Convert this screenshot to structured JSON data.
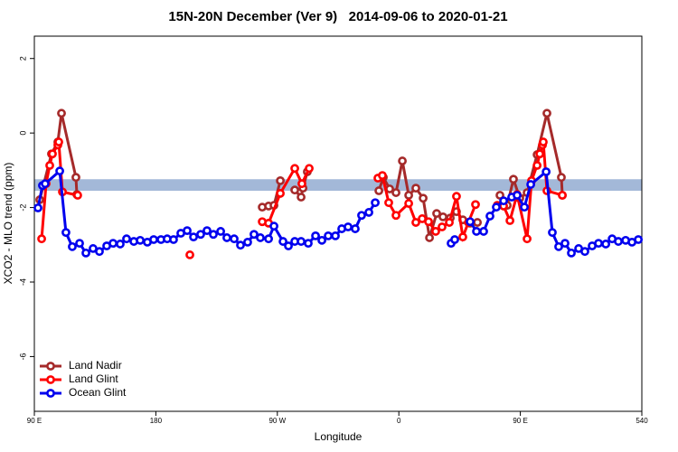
{
  "chart_data": {
    "type": "line",
    "title": "15N-20N December (Ver 9)   2014-09-06 to 2020-01-21",
    "x_label": "Longitude",
    "y_label": "XCO2 - MLO trend (ppm)",
    "xlim": [
      90,
      540
    ],
    "xticks": [
      {
        "value": 90,
        "label": "90 E"
      },
      180,
      {
        "value": 270,
        "label": "90 W"
      },
      {
        "value": 360,
        "label": "0"
      },
      {
        "value": 450,
        "label": "90 E"
      },
      540
    ],
    "ylim": [
      -7.47,
      2.6
    ],
    "yticks": [
      -6,
      -4,
      -2,
      0,
      2
    ],
    "band": [
      -1.55,
      -1.24
    ],
    "band_color": "#a3b8d8",
    "legend": "bottom-left",
    "series": [
      {
        "name": "Land Nadir",
        "color": "#a52a2a",
        "x": [
          94.0,
          96.7,
          102.7,
          107.4,
          110.1,
          120.8,
          121.5,
          null,
          258.8,
          263.5,
          267.5,
          272.2,
          null,
          282.9,
          287.6,
          289.0,
          292.2,
          null,
          345.2,
          348.5,
          353.2,
          357.9,
          362.6,
          367.3,
          372.6,
          378.0,
          382.7,
          388.0,
          392.7,
          398.1,
          402.7,
          407.4,
          412.8,
          418.2,
          null,
          434.9,
          440.3,
          444.9,
          449.6,
          455.0,
          462.4,
          469.7,
          480.4,
          481.1
        ],
        "values": [
          -1.79,
          -1.41,
          -0.56,
          -0.24,
          0.53,
          -1.19,
          -1.65,
          null,
          -1.99,
          -1.96,
          -1.94,
          -1.28,
          null,
          -1.53,
          -1.72,
          -1.48,
          -1.04,
          null,
          -1.55,
          -1.19,
          -1.5,
          -1.6,
          -0.75,
          -1.67,
          -1.48,
          -1.75,
          -2.81,
          -2.16,
          -2.25,
          -2.28,
          -2.11,
          -2.33,
          -2.42,
          -2.4,
          null,
          -1.67,
          -1.94,
          -1.24,
          -1.75,
          -1.6,
          -0.58,
          0.53,
          -1.19,
          -1.67
        ]
      },
      {
        "name": "Land Glint",
        "color": "#ff0000",
        "x": [
          95.4,
          98.7,
          101.4,
          103.4,
          107.4,
          108.1,
          110.8,
          122.1,
          null,
          205.2,
          null,
          258.8,
          263.5,
          272.2,
          282.9,
          288.2,
          293.6,
          null,
          344.5,
          347.8,
          352.5,
          357.9,
          367.3,
          372.6,
          377.3,
          382.0,
          387.3,
          392.0,
          397.4,
          402.7,
          407.4,
          411.5,
          416.8,
          null,
          432.9,
          437.6,
          442.3,
          447.6,
          455.0,
          458.3,
          462.4,
          464.4,
          466.4,
          467.0,
          469.7,
          481.1
        ],
        "values": [
          -2.84,
          -1.36,
          -0.87,
          -0.56,
          -0.32,
          -0.24,
          -1.58,
          -1.67,
          null,
          -3.27,
          null,
          -2.38,
          -2.42,
          -1.62,
          -0.95,
          -1.36,
          -0.95,
          null,
          -1.21,
          -1.14,
          -1.87,
          -2.21,
          -1.89,
          -2.4,
          -2.3,
          -2.38,
          -2.64,
          -2.52,
          -2.4,
          -1.7,
          -2.79,
          -2.4,
          -1.92,
          null,
          -1.94,
          -1.96,
          -2.35,
          -1.65,
          -2.84,
          -1.28,
          -0.87,
          -0.56,
          -0.32,
          -0.24,
          -1.55,
          -1.67
        ]
      },
      {
        "name": "Ocean Glint",
        "color": "#0000ee",
        "x": [
          92.7,
          96.0,
          98.0,
          108.8,
          113.4,
          118.1,
          123.5,
          128.2,
          133.5,
          138.2,
          143.6,
          148.3,
          153.6,
          158.3,
          163.7,
          168.4,
          173.7,
          178.4,
          183.8,
          188.4,
          193.1,
          198.5,
          203.2,
          207.9,
          213.2,
          217.9,
          222.6,
          228.0,
          232.6,
          238.0,
          242.7,
          248.0,
          252.7,
          257.4,
          263.5,
          267.5,
          274.2,
          278.2,
          282.9,
          287.6,
          292.9,
          298.3,
          303.0,
          307.7,
          313.0,
          317.7,
          322.4,
          327.7,
          332.4,
          337.8,
          342.5,
          null,
          398.7,
          401.4,
          null,
          412.8,
          417.5,
          422.8,
          427.5,
          432.2,
          437.6,
          443.6,
          447.6,
          453.0,
          457.7,
          469.1,
          473.7,
          478.4,
          483.1,
          487.8,
          493.2,
          497.8,
          503.2,
          507.9,
          513.3,
          518.0,
          522.6,
          528.0,
          532.7,
          537.4
        ],
        "values": [
          -2.01,
          -1.41,
          -1.36,
          -1.02,
          -2.67,
          -3.05,
          -2.96,
          -3.22,
          -3.1,
          -3.18,
          -3.03,
          -2.96,
          -2.98,
          -2.84,
          -2.91,
          -2.88,
          -2.93,
          -2.86,
          -2.86,
          -2.84,
          -2.86,
          -2.69,
          -2.62,
          -2.79,
          -2.72,
          -2.62,
          -2.72,
          -2.64,
          -2.81,
          -2.84,
          -3.01,
          -2.93,
          -2.72,
          -2.81,
          -2.84,
          -2.5,
          -2.91,
          -3.03,
          -2.91,
          -2.91,
          -2.96,
          -2.76,
          -2.88,
          -2.76,
          -2.76,
          -2.57,
          -2.52,
          -2.57,
          -2.21,
          -2.13,
          -1.87,
          null,
          -2.96,
          -2.86,
          null,
          -2.38,
          -2.64,
          -2.64,
          -2.23,
          -1.99,
          -1.82,
          -1.72,
          -1.67,
          -1.99,
          -1.38,
          -1.04,
          -2.67,
          -3.05,
          -2.96,
          -3.22,
          -3.1,
          -3.18,
          -3.03,
          -2.96,
          -2.98,
          -2.84,
          -2.91,
          -2.88,
          -2.93,
          -2.86
        ]
      }
    ]
  }
}
